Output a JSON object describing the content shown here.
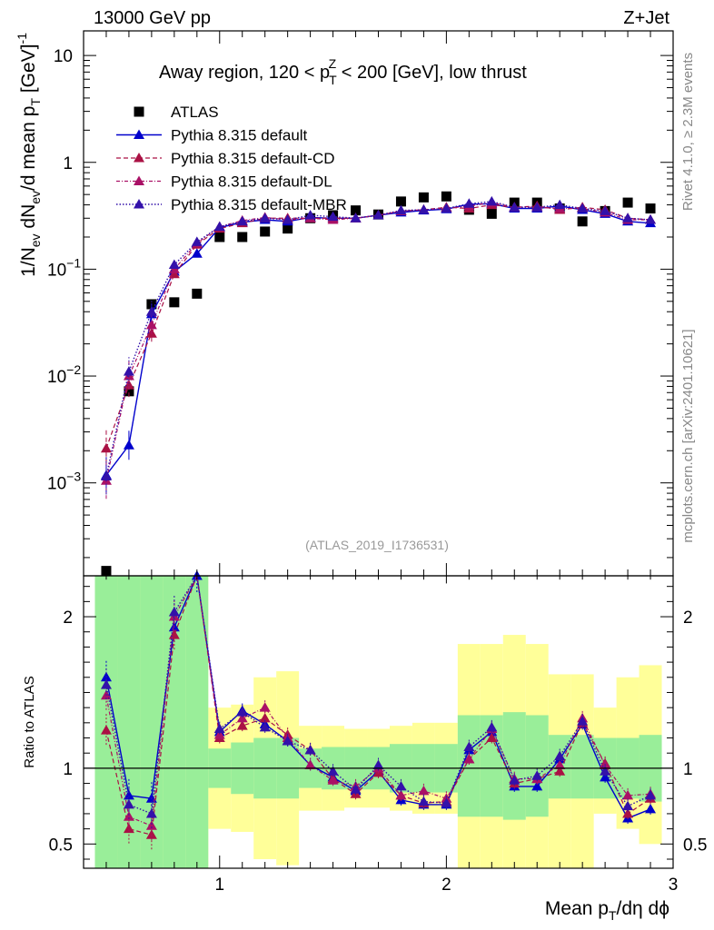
{
  "header": {
    "energy_label": "13000 GeV pp",
    "process_label": "Z+Jet",
    "subtitle": "Away region, 120 < p",
    "subtitle_sup": "Z",
    "subtitle_sub": "T",
    "subtitle_tail": " < 200 [GeV], low thrust",
    "watermark": "(ATLAS_2019_I1736531)",
    "side_rivet": "Rivet 4.1.0, ≥ 2.3M events",
    "side_mcplots": "mcplots.cern.ch [arXiv:2401.10621]"
  },
  "axes": {
    "ylabel_main": "1/N_ev dN_ev/d mean p_T [GeV]^-1",
    "ylabel_main_parts": {
      "a": "1/N",
      "a_sub": "ev",
      "b": " dN",
      "b_sub": "ev",
      "c": "/d mean p",
      "c_sub": "T",
      "d": " [GeV]",
      "d_sup": "-1"
    },
    "ylabel_ratio": "Ratio to ATLAS",
    "xlabel_parts": {
      "a": "Mean p",
      "a_sub": "T",
      "b": "/dη dϕ"
    },
    "main_ylim": [
      0.000135,
      17
    ],
    "ratio_ylim": [
      0.34,
      2.27
    ],
    "xlim": [
      0.4,
      3.0
    ],
    "main_yticks": [
      {
        "value": 10,
        "base": "10",
        "exp": ""
      },
      {
        "value": 1,
        "base": "1",
        "exp": ""
      },
      {
        "value": 0.1,
        "base": "10",
        "exp": "−1"
      },
      {
        "value": 0.01,
        "base": "10",
        "exp": "−2"
      },
      {
        "value": 0.001,
        "base": "10",
        "exp": "−3"
      }
    ],
    "ratio_yticks": [
      {
        "value": 2,
        "label": "2"
      },
      {
        "value": 1,
        "label": "1"
      },
      {
        "value": 0.5,
        "label": "0.5"
      }
    ],
    "xticks": [
      {
        "value": 1,
        "label": "1"
      },
      {
        "value": 2,
        "label": "2"
      },
      {
        "value": 3,
        "label": "3"
      }
    ]
  },
  "chart_data": {
    "type": "scatter",
    "title": "Away region, 120 < pT^Z < 200 [GeV], low thrust",
    "x": [
      0.5,
      0.6,
      0.7,
      0.8,
      0.9,
      1.0,
      1.1,
      1.2,
      1.3,
      1.4,
      1.5,
      1.6,
      1.7,
      1.8,
      1.9,
      2.0,
      2.1,
      2.2,
      2.3,
      2.4,
      2.5,
      2.6,
      2.7,
      2.8,
      2.9
    ],
    "bin_width": 0.1,
    "legend": [
      {
        "label": "ATLAS",
        "key": "atlas"
      },
      {
        "label": "Pythia 8.315 default",
        "key": "default"
      },
      {
        "label": "Pythia 8.315 default-CD",
        "key": "cd"
      },
      {
        "label": "Pythia 8.315 default-DL",
        "key": "dl"
      },
      {
        "label": "Pythia 8.315 default-MBR",
        "key": "mbr"
      }
    ],
    "colors": {
      "atlas": "#000000",
      "default": "#0000cc",
      "cd": "#aa1144",
      "dl": "#aa1166",
      "mbr": "#3311aa"
    },
    "series": [
      {
        "key": "atlas",
        "name": "ATLAS",
        "values": [
          0.00015,
          0.0072,
          0.047,
          0.049,
          0.059,
          0.2,
          0.2,
          0.225,
          0.24,
          0.3,
          0.32,
          0.355,
          0.325,
          0.43,
          0.47,
          0.48,
          0.36,
          0.33,
          0.42,
          0.42,
          0.37,
          0.28,
          0.35,
          0.42,
          0.37
        ]
      },
      {
        "key": "default",
        "name": "Pythia 8.315 default",
        "values": [
          0.00118,
          0.00225,
          0.038,
          0.095,
          0.14,
          0.245,
          0.275,
          0.29,
          0.28,
          0.305,
          0.3,
          0.3,
          0.32,
          0.34,
          0.355,
          0.365,
          0.405,
          0.41,
          0.37,
          0.37,
          0.39,
          0.36,
          0.33,
          0.28,
          0.27
        ],
        "ratio": [
          1.6,
          0.82,
          0.8,
          1.93,
          2.27,
          1.24,
          1.38,
          1.29,
          1.18,
          1.02,
          0.94,
          0.85,
          0.98,
          0.79,
          0.76,
          0.76,
          1.12,
          1.24,
          0.88,
          0.88,
          1.06,
          1.29,
          0.94,
          0.67,
          0.73
        ]
      },
      {
        "key": "cd",
        "name": "Pythia 8.315 default-CD",
        "values": [
          0.0021,
          0.0082,
          0.025,
          0.09,
          0.17,
          0.24,
          0.27,
          0.3,
          0.3,
          0.3,
          0.3,
          0.3,
          0.32,
          0.35,
          0.36,
          0.38,
          0.37,
          0.4,
          0.38,
          0.39,
          0.36,
          0.38,
          0.36,
          0.3,
          0.29
        ],
        "ratio": [
          1.25,
          0.6,
          0.56,
          1.88,
          2.3,
          1.2,
          1.28,
          1.33,
          1.22,
          1.12,
          0.93,
          0.83,
          0.97,
          0.82,
          0.77,
          0.78,
          1.06,
          1.2,
          0.9,
          0.93,
          0.98,
          1.3,
          1.03,
          0.7,
          0.8
        ]
      },
      {
        "key": "dl",
        "name": "Pythia 8.315 default-DL",
        "values": [
          0.00105,
          0.01,
          0.03,
          0.1,
          0.175,
          0.25,
          0.285,
          0.305,
          0.29,
          0.3,
          0.29,
          0.3,
          0.32,
          0.35,
          0.36,
          0.37,
          0.39,
          0.42,
          0.38,
          0.38,
          0.37,
          0.37,
          0.34,
          0.29,
          0.29
        ],
        "ratio": [
          1.48,
          0.68,
          0.62,
          2.0,
          2.35,
          1.22,
          1.33,
          1.4,
          1.2,
          1.02,
          0.92,
          0.88,
          1.0,
          0.82,
          0.85,
          0.8,
          1.06,
          1.26,
          0.93,
          0.93,
          1.02,
          1.33,
          1.02,
          0.82,
          0.83
        ]
      },
      {
        "key": "mbr",
        "name": "Pythia 8.315 default-MBR",
        "values": [
          0.00115,
          0.011,
          0.04,
          0.11,
          0.18,
          0.25,
          0.28,
          0.3,
          0.29,
          0.32,
          0.31,
          0.3,
          0.32,
          0.355,
          0.36,
          0.37,
          0.41,
          0.43,
          0.38,
          0.38,
          0.4,
          0.37,
          0.35,
          0.3,
          0.29
        ],
        "ratio": [
          1.55,
          0.76,
          0.7,
          2.03,
          2.3,
          1.26,
          1.37,
          1.27,
          1.18,
          1.12,
          0.98,
          0.86,
          1.02,
          0.88,
          0.78,
          0.77,
          1.14,
          1.27,
          0.92,
          0.95,
          1.08,
          1.31,
          0.98,
          0.75,
          0.82
        ]
      }
    ],
    "ratio_band_green": [
      [
        0.34,
        2.27
      ],
      [
        0.34,
        2.27
      ],
      [
        0.34,
        2.27
      ],
      [
        0.34,
        2.27
      ],
      [
        0.34,
        2.27
      ],
      [
        0.87,
        1.13
      ],
      [
        0.83,
        1.17
      ],
      [
        0.8,
        1.2
      ],
      [
        0.8,
        1.2
      ],
      [
        0.87,
        1.13
      ],
      [
        0.86,
        1.14
      ],
      [
        0.86,
        1.14
      ],
      [
        0.86,
        1.14
      ],
      [
        0.84,
        1.16
      ],
      [
        0.84,
        1.16
      ],
      [
        0.84,
        1.16
      ],
      [
        0.68,
        1.35
      ],
      [
        0.68,
        1.35
      ],
      [
        0.66,
        1.37
      ],
      [
        0.68,
        1.35
      ],
      [
        0.8,
        1.22
      ],
      [
        0.8,
        1.22
      ],
      [
        0.8,
        1.2
      ],
      [
        0.8,
        1.2
      ],
      [
        0.78,
        1.22
      ]
    ],
    "ratio_band_yellow": [
      [
        0.34,
        2.27
      ],
      [
        0.34,
        2.27
      ],
      [
        0.34,
        2.27
      ],
      [
        0.34,
        2.27
      ],
      [
        0.34,
        2.27
      ],
      [
        0.6,
        1.4
      ],
      [
        0.58,
        1.42
      ],
      [
        0.4,
        1.6
      ],
      [
        0.36,
        1.64
      ],
      [
        0.72,
        1.28
      ],
      [
        0.72,
        1.28
      ],
      [
        0.74,
        1.26
      ],
      [
        0.74,
        1.26
      ],
      [
        0.72,
        1.28
      ],
      [
        0.7,
        1.3
      ],
      [
        0.7,
        1.3
      ],
      [
        0.34,
        1.82
      ],
      [
        0.34,
        1.82
      ],
      [
        0.34,
        1.88
      ],
      [
        0.34,
        1.82
      ],
      [
        0.34,
        1.62
      ],
      [
        0.34,
        1.62
      ],
      [
        0.7,
        1.4
      ],
      [
        0.6,
        1.6
      ],
      [
        0.5,
        1.68
      ]
    ]
  }
}
